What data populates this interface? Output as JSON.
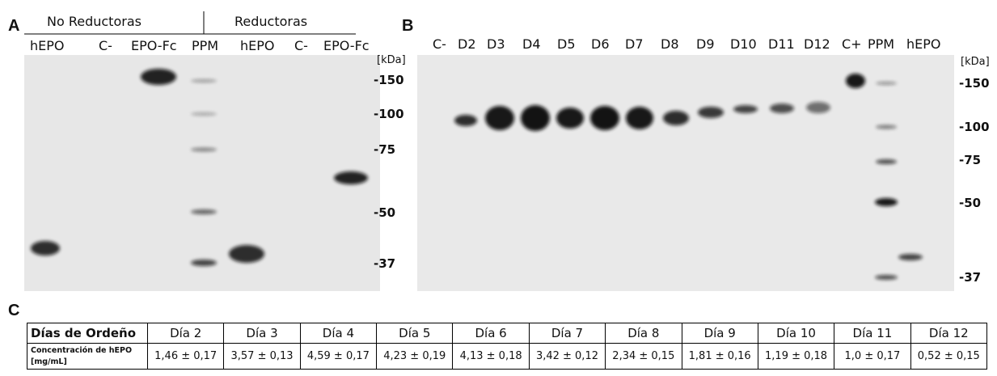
{
  "panel_a": {
    "label": "A",
    "groups": [
      "No Reductoras",
      "Reductoras"
    ],
    "lanes": [
      "hEPO",
      "C-",
      "EPO-Fc",
      "PPM",
      "hEPO",
      "C-",
      "EPO-Fc"
    ],
    "units": "[kDa]",
    "markers": [
      "-150",
      "-100",
      "-75",
      "-50",
      "-37"
    ]
  },
  "panel_b": {
    "label": "B",
    "lanes": [
      "C-",
      "D2",
      "D3",
      "D4",
      "D5",
      "D6",
      "D7",
      "D8",
      "D9",
      "D10",
      "D11",
      "D12",
      "C+",
      "PPM",
      "hEPO"
    ],
    "units": "[kDa]",
    "markers": [
      "-150",
      "-100",
      "-75",
      "-50",
      "-37"
    ]
  },
  "panel_c": {
    "label": "C",
    "header": [
      "Días de Ordeño",
      "Día 2",
      "Día 3",
      "Día 4",
      "Día 5",
      "Día 6",
      "Día 7",
      "Día 8",
      "Día 9",
      "Día 10",
      "Día 11",
      "Día 12"
    ],
    "row_label": [
      "Concentración de hEPO",
      "[mg/mL]"
    ],
    "row": [
      "1,46 ± 0,17",
      "3,57 ± 0,13",
      "4,59 ± 0,17",
      "4,23 ± 0,19",
      "4,13 ± 0,18",
      "3,42 ± 0,12",
      "2,34 ± 0,15",
      "1,81 ± 0,16",
      "1,19 ± 0,18",
      "1,0 ± 0,17",
      "0,52 ± 0,15"
    ]
  }
}
